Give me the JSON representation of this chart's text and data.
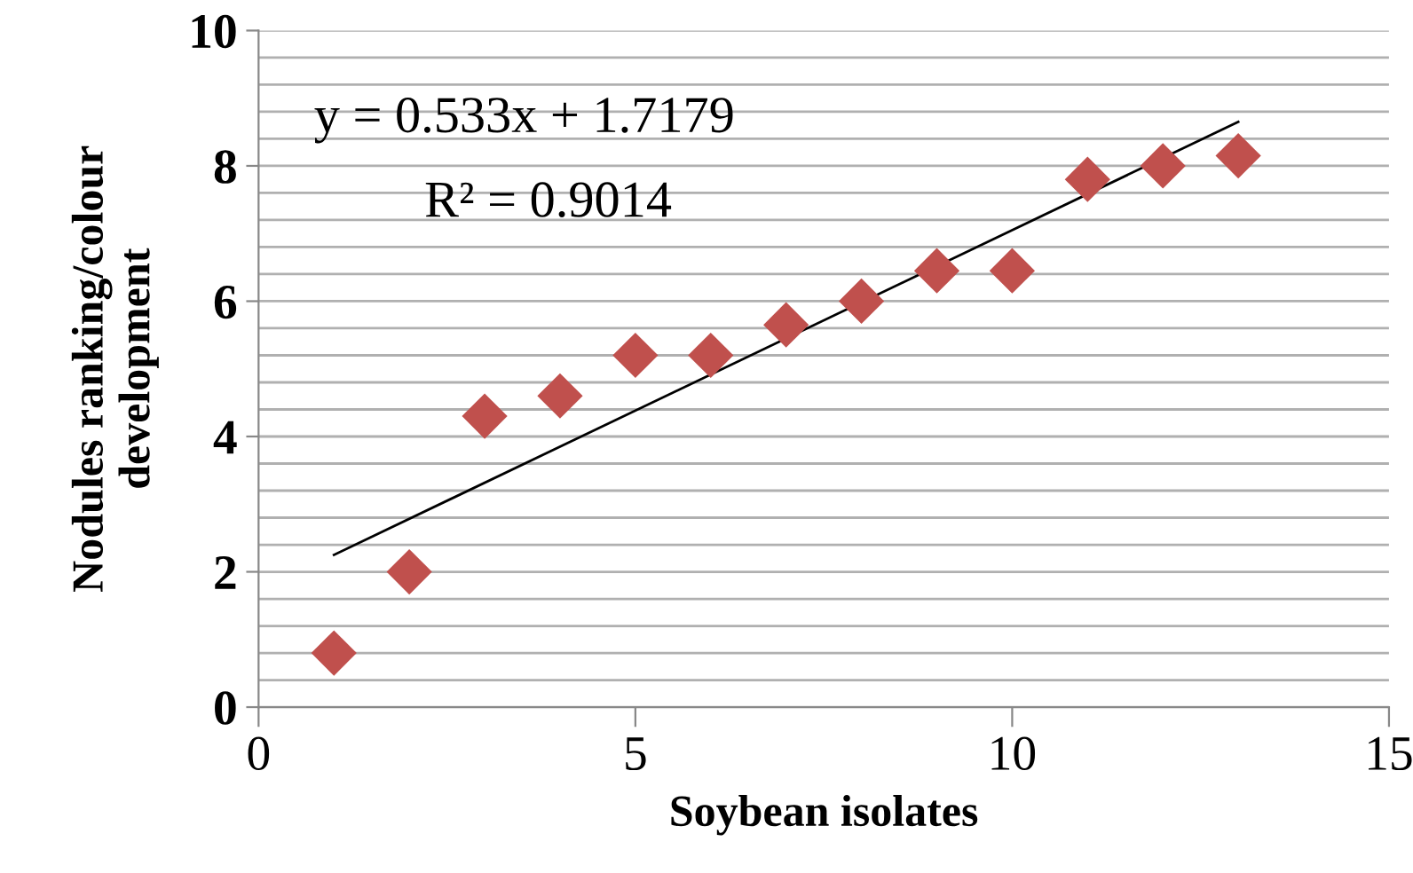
{
  "chart_data": {
    "type": "scatter",
    "xlabel": "Soybean isolates",
    "ylabel": "Nodules ranking/colour\ndevelopment",
    "xlim": [
      0,
      15
    ],
    "xticks": [
      0,
      5,
      10,
      15
    ],
    "ylim": [
      0,
      10
    ],
    "yticks": [
      0,
      {
        "value": 0.4,
        "label": null
      },
      {
        "value": 0.8,
        "label": null
      },
      {
        "value": 1.2,
        "label": null
      },
      {
        "value": 1.6,
        "label": null
      },
      2,
      {
        "value": 2.4,
        "label": null
      },
      {
        "value": 2.8,
        "label": null
      },
      {
        "value": 3.2,
        "label": null
      },
      {
        "value": 3.6,
        "label": null
      },
      4,
      {
        "value": 4.4,
        "label": null
      },
      {
        "value": 4.8,
        "label": null
      },
      {
        "value": 5.2,
        "label": null
      },
      {
        "value": 5.6,
        "label": null
      },
      6,
      {
        "value": 6.4,
        "label": null
      },
      {
        "value": 6.8,
        "label": null
      },
      {
        "value": 7.2,
        "label": null
      },
      {
        "value": 7.6,
        "label": null
      },
      8,
      {
        "value": 8.4,
        "label": null
      },
      {
        "value": 8.8,
        "label": null
      },
      {
        "value": 9.2,
        "label": null
      },
      {
        "value": 9.6,
        "label": null
      },
      10
    ],
    "grid": "y",
    "legend": false,
    "series": [
      {
        "marker": "diamond",
        "color": "#c0504d",
        "x": [
          1,
          2,
          3,
          4,
          5,
          6,
          7,
          8,
          9,
          10,
          11,
          12,
          13
        ],
        "values": [
          0.8,
          2.0,
          4.3,
          4.6,
          5.2,
          5.2,
          5.65,
          6.0,
          6.45,
          6.45,
          7.8,
          8.0,
          8.15
        ]
      },
      {
        "type": "line",
        "marker": "none",
        "color": "#000000",
        "x": [
          1,
          13
        ],
        "values": [
          2.25,
          8.65
        ]
      }
    ],
    "annotations": [
      "y = 0.533x + 1.7179",
      "R² = 0.9014"
    ]
  }
}
